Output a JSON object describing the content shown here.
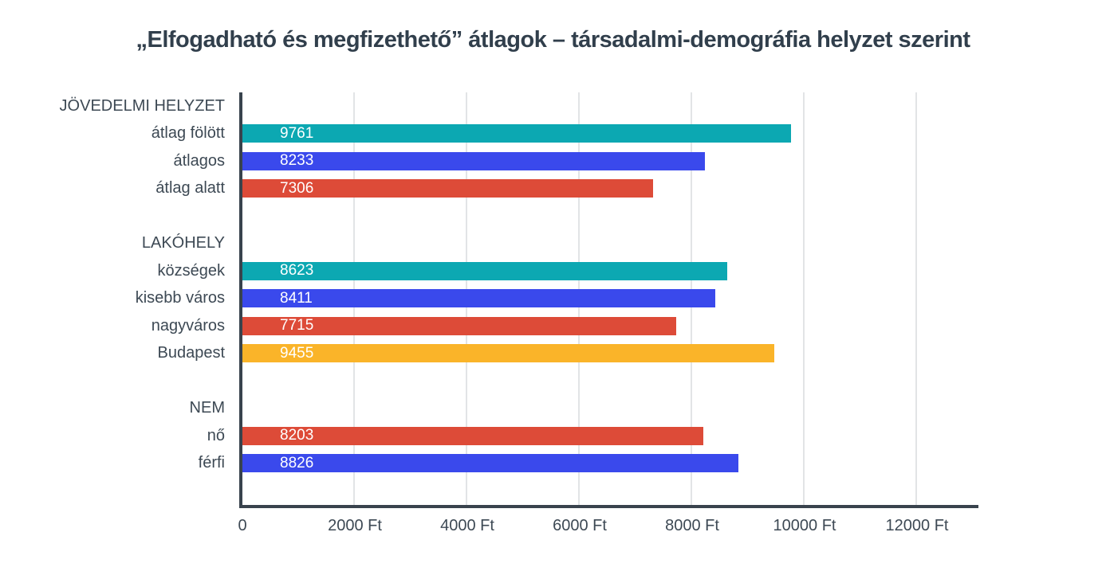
{
  "title": "„Elfogadható és megfizethető” átlagok – társadalmi-demográfia helyzet szerint",
  "chart_data": {
    "type": "bar",
    "orientation": "horizontal",
    "title": "„Elfogadható és megfizethető” átlagok – társadalmi-demográfia helyzet szerint",
    "xlabel": "",
    "ylabel": "",
    "unit": "Ft",
    "xlim": [
      0,
      13100
    ],
    "grid": true,
    "legend": "none",
    "x_ticks": [
      {
        "value": 0,
        "label": "0"
      },
      {
        "value": 2000,
        "label": "2000 Ft"
      },
      {
        "value": 4000,
        "label": "4000 Ft"
      },
      {
        "value": 6000,
        "label": "6000 Ft"
      },
      {
        "value": 8000,
        "label": "8000 Ft"
      },
      {
        "value": 10000,
        "label": "10000 Ft"
      },
      {
        "value": 12000,
        "label": "12000 Ft"
      }
    ],
    "groups": [
      {
        "header": "JÖVEDELMI HELYZET",
        "items": [
          {
            "label": "átlag fölött",
            "value": 9761,
            "color": "#0ca8b2"
          },
          {
            "label": "átlagos",
            "value": 8233,
            "color": "#3a49ec"
          },
          {
            "label": "átlag alatt",
            "value": 7306,
            "color": "#dd4b38"
          }
        ]
      },
      {
        "header": "LAKÓHELY",
        "items": [
          {
            "label": "községek",
            "value": 8623,
            "color": "#0ca8b2"
          },
          {
            "label": "kisebb város",
            "value": 8411,
            "color": "#3a49ec"
          },
          {
            "label": "nagyváros",
            "value": 7715,
            "color": "#dd4b38"
          },
          {
            "label": "Budapest",
            "value": 9455,
            "color": "#fab429"
          }
        ]
      },
      {
        "header": "NEM",
        "items": [
          {
            "label": "nő",
            "value": 8203,
            "color": "#dd4b38"
          },
          {
            "label": "férfi",
            "value": 8826,
            "color": "#3a49ec"
          }
        ]
      }
    ],
    "colors": {
      "teal": "#0ca8b2",
      "blue": "#3a49ec",
      "red": "#dd4b38",
      "amber": "#fab429",
      "axis": "#39434d",
      "gridline": "#e2e4e6",
      "label_text": "#3d4954",
      "title_text": "#313f4c",
      "bar_value_text": "#ffffff"
    }
  }
}
